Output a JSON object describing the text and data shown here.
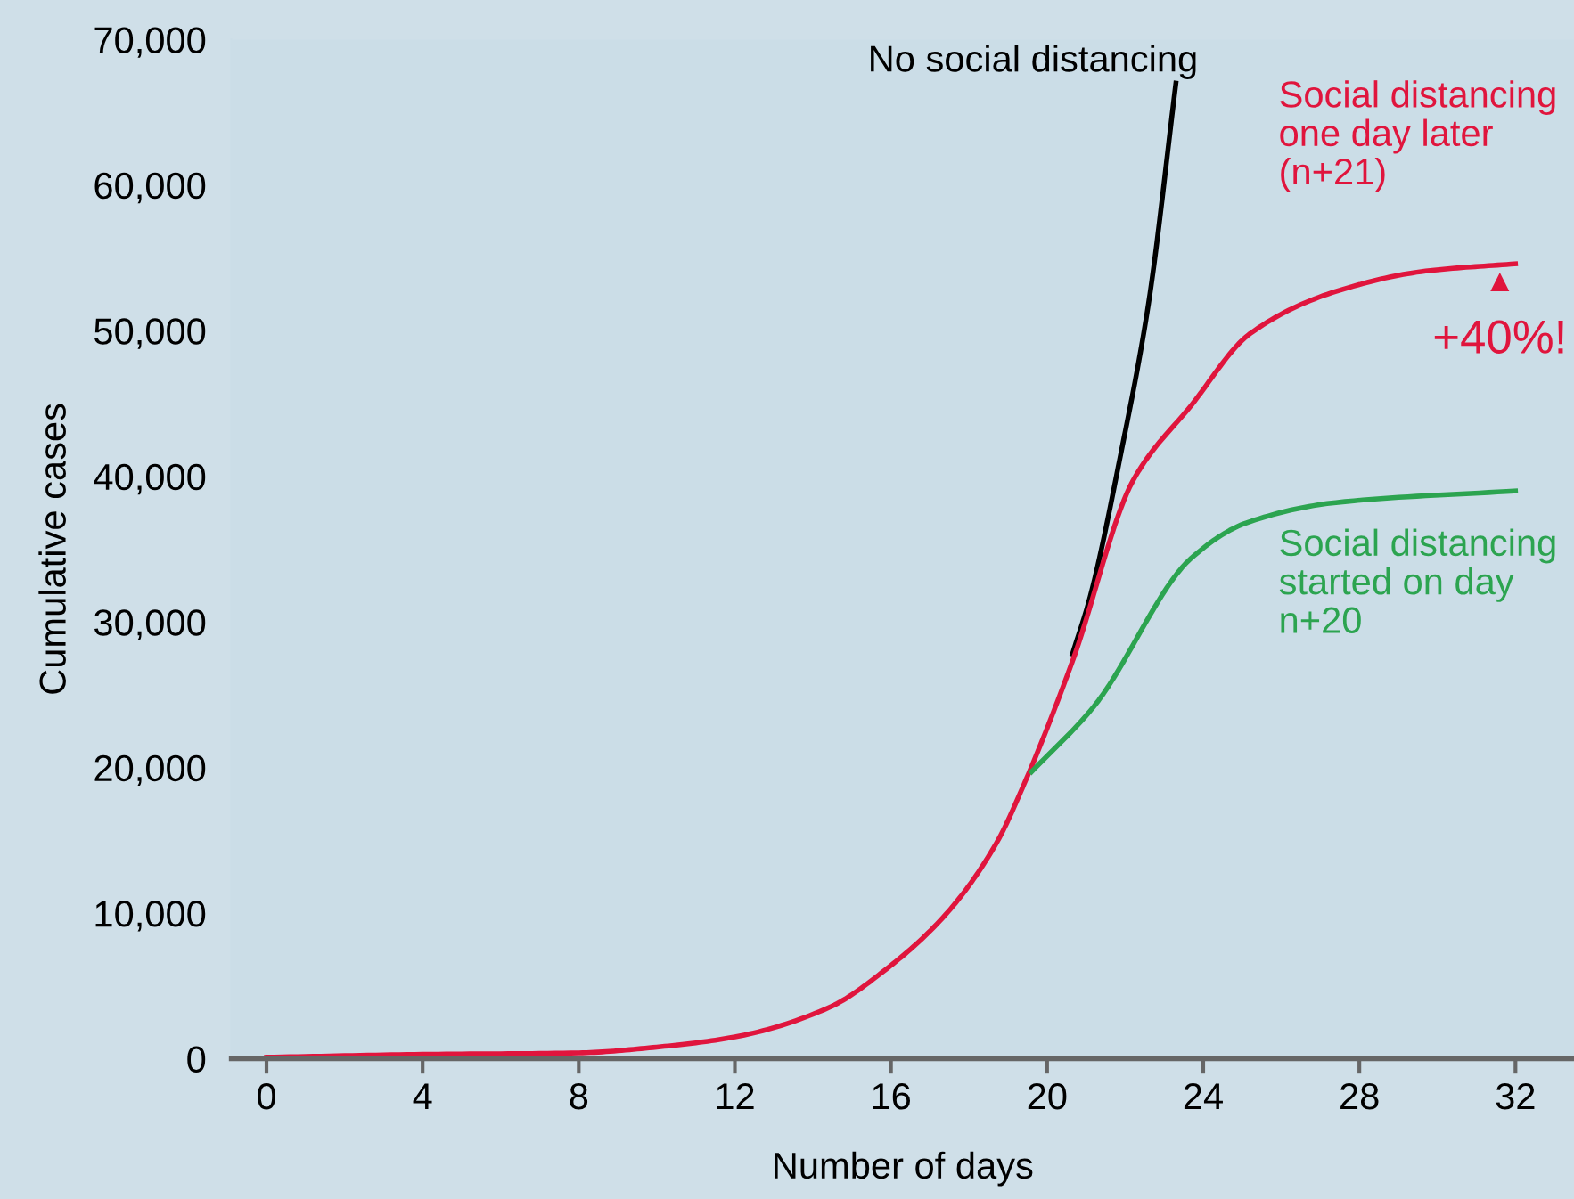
{
  "chart_data": {
    "type": "line",
    "xlabel": "Number of days",
    "ylabel": "Cumulative cases",
    "xlim": [
      -0.9,
      33.5
    ],
    "ylim": [
      0,
      70000
    ],
    "xticks": [
      0,
      4,
      8,
      12,
      16,
      20,
      24,
      28,
      32
    ],
    "yticks": [
      {
        "value": 0,
        "label": "0"
      },
      {
        "value": 10000,
        "label": "10,000"
      },
      {
        "value": 20000,
        "label": "20,000"
      },
      {
        "value": 30000,
        "label": "30,000"
      },
      {
        "value": 40000,
        "label": "40,000"
      },
      {
        "value": 50000,
        "label": "50,000"
      },
      {
        "value": 60000,
        "label": "60,000"
      },
      {
        "value": 70000,
        "label": "70,000"
      }
    ],
    "grid": false,
    "legend": false,
    "marker": "none",
    "line_style": "solid",
    "series": [
      {
        "name": "No social distancing",
        "color": "#000000",
        "x": [
          20.65,
          21.1,
          21.9,
          22.6,
          23.3
        ],
        "values": [
          27800,
          31700,
          41700,
          51900,
          67000
        ]
      },
      {
        "name": "Social distancing\none day later\n(n+21)",
        "color": "#e0153d",
        "x": [
          0,
          4,
          8,
          10,
          12,
          14.4,
          15.9,
          17.4,
          18.7,
          19.4,
          20.65,
          22.2,
          23.7,
          25.2,
          27.4,
          29.7,
          32
        ],
        "values": [
          100,
          300,
          400,
          800,
          1500,
          3500,
          6200,
          9900,
          14800,
          18800,
          27300,
          39700,
          44900,
          49800,
          52700,
          54100,
          54600
        ]
      },
      {
        "name": "Social distancing\nstarted on day\nn+20",
        "color": "#2ca450",
        "x": [
          19.6,
          21.2,
          23.7,
          25.1,
          27.4,
          32
        ],
        "values": [
          19700,
          24200,
          34400,
          36800,
          38200,
          39000
        ]
      }
    ],
    "annotations": [
      {
        "text": "+40%!",
        "x": 31.6,
        "y": 54600
      }
    ]
  }
}
